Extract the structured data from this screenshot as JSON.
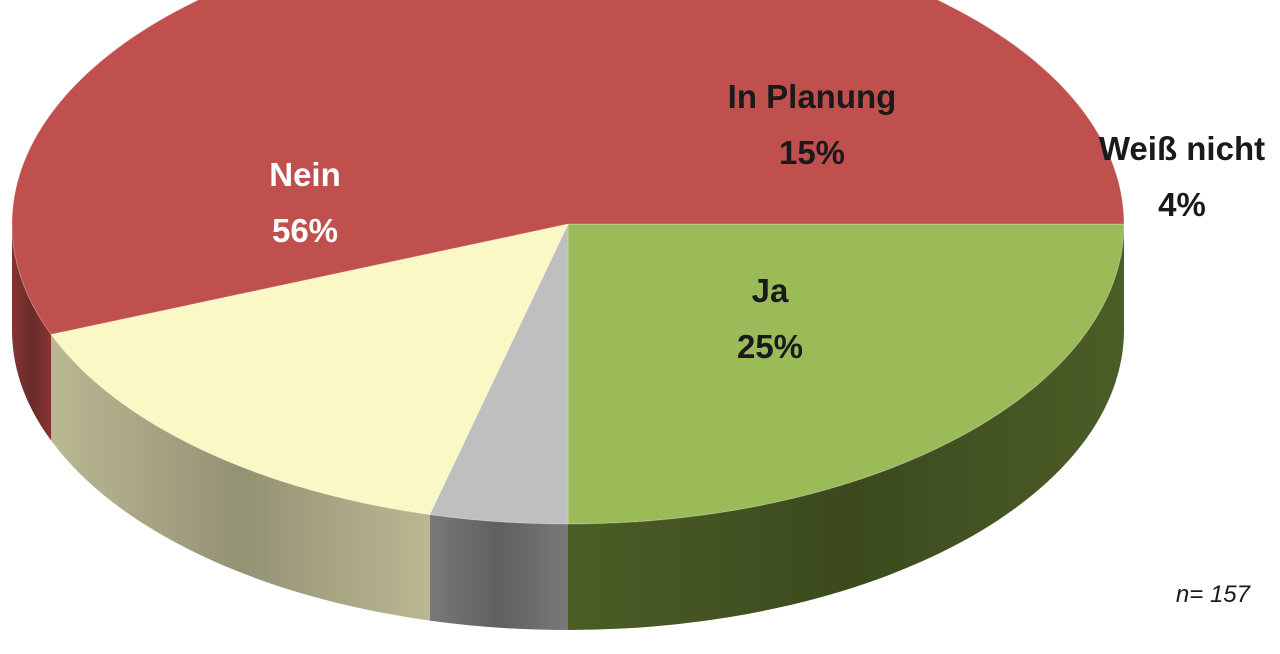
{
  "chart_data": {
    "type": "pie",
    "style": "3d",
    "slices": [
      {
        "label": "Ja",
        "value": 25,
        "display": "25%",
        "color": "#9BBB59",
        "side_color": "#4F6228",
        "label_color": "#1a1a1a"
      },
      {
        "label": "Weiß nicht",
        "value": 4,
        "display": "4%",
        "color": "#BFBFBF",
        "side_color": "#7F7F7F",
        "label_color": "#1a1a1a"
      },
      {
        "label": "In Planung",
        "value": 15,
        "display": "15%",
        "color": "#FAF8C4",
        "side_color": "#C4C29A",
        "label_color": "#1a1a1a"
      },
      {
        "label": "Nein",
        "value": 56,
        "display": "56%",
        "color": "#C0504D",
        "side_color": "#8C3836",
        "label_color": "#ffffff"
      }
    ],
    "note": "n= 157"
  }
}
